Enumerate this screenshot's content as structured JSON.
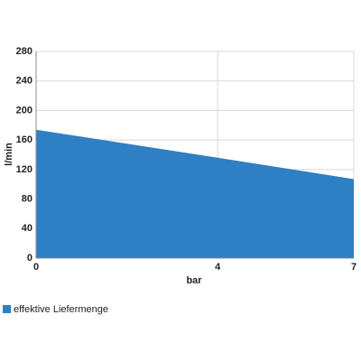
{
  "chart_data": {
    "type": "area",
    "x": [
      0,
      4,
      7
    ],
    "series": [
      {
        "name": "effektive Liefermenge",
        "color": "#2f7fc4",
        "values": [
          174,
          136,
          107
        ]
      }
    ],
    "xlabel": "bar",
    "ylabel": "l/min",
    "xlim": [
      0,
      7
    ],
    "xticks": [
      0,
      4,
      7
    ],
    "ylim": [
      0,
      280
    ],
    "yticks": [
      0,
      40,
      80,
      120,
      160,
      200,
      240,
      280
    ],
    "grid": true,
    "legend": "bottom-left"
  }
}
